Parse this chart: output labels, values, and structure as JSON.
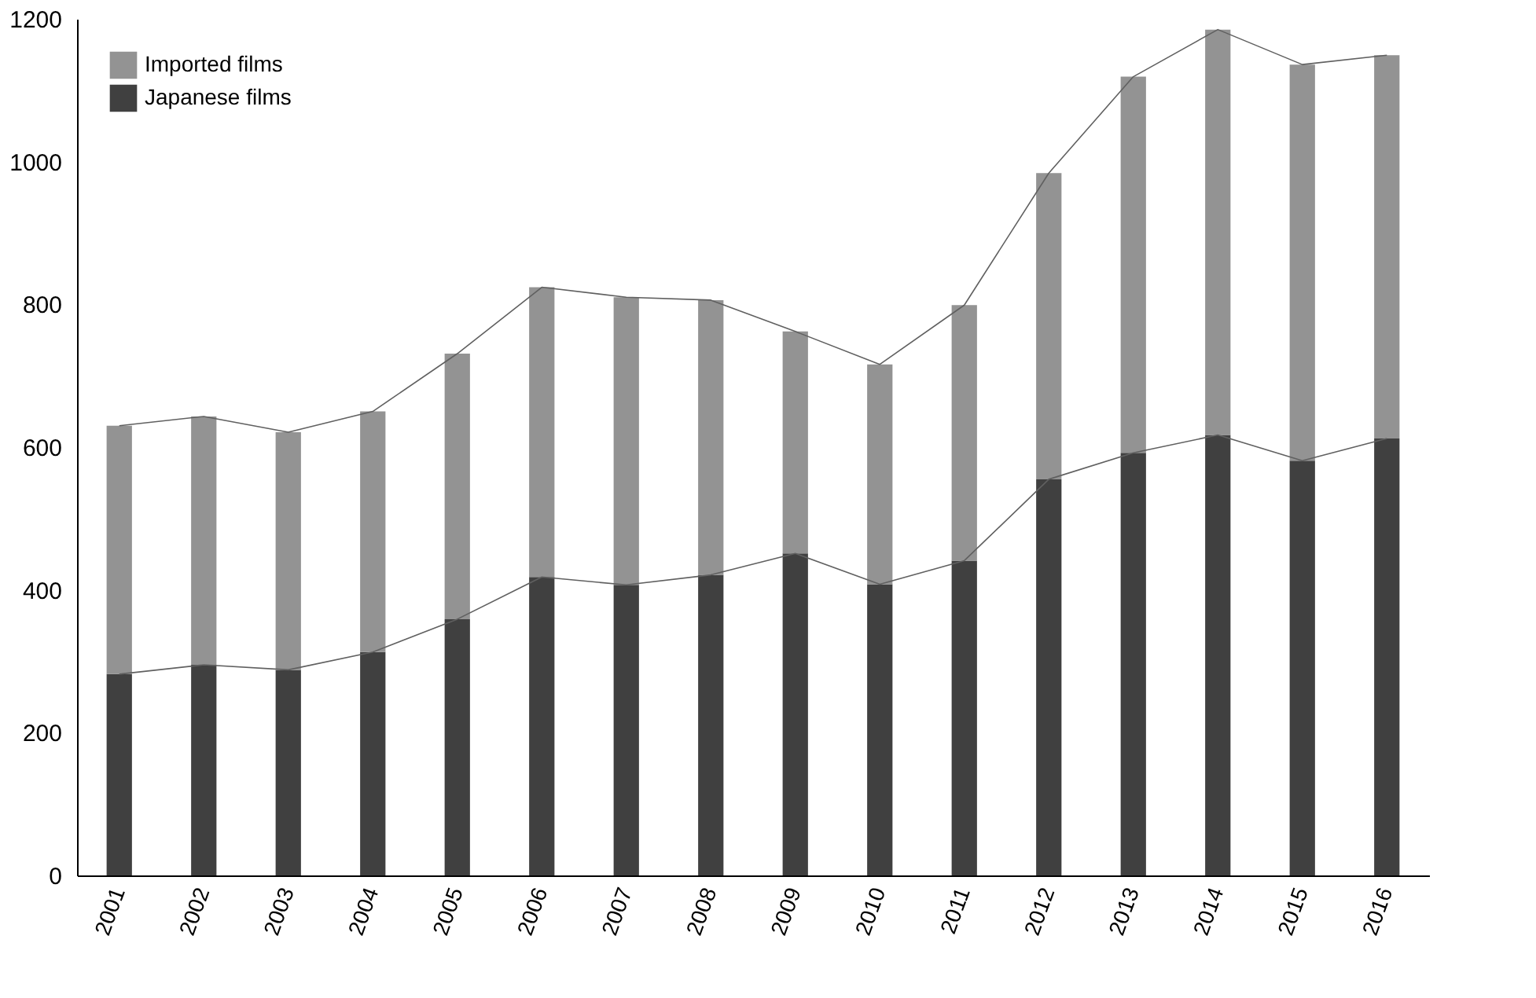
{
  "chart_data": {
    "type": "bar",
    "stacked": true,
    "categories": [
      "2001",
      "2002",
      "2003",
      "2004",
      "2005",
      "2006",
      "2007",
      "2008",
      "2009",
      "2010",
      "2011",
      "2012",
      "2013",
      "2014",
      "2015",
      "2016"
    ],
    "series": [
      {
        "name": "Japanese films",
        "color": "#404040",
        "values": [
          282,
          295,
          288,
          313,
          359,
          418,
          407,
          421,
          451,
          408,
          441,
          555,
          592,
          617,
          581,
          612
        ]
      },
      {
        "name": "Imported films",
        "color": "#939393",
        "values": [
          348,
          348,
          333,
          337,
          372,
          406,
          403,
          385,
          311,
          308,
          358,
          429,
          527,
          568,
          555,
          537
        ]
      }
    ],
    "ylim": [
      0,
      1200
    ],
    "yticks": [
      0,
      200,
      400,
      600,
      800,
      1000,
      1200
    ],
    "grid": false,
    "legend": "top left"
  }
}
